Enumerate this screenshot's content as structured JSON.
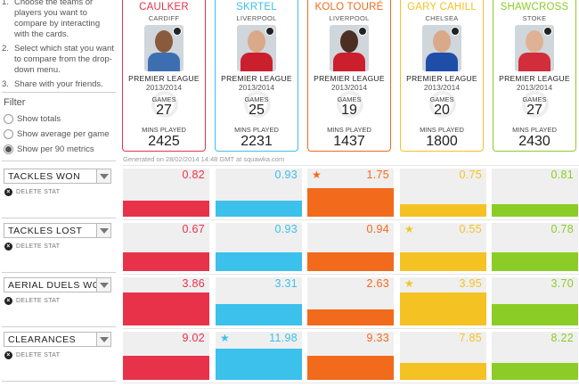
{
  "instructions": [
    {
      "num": "1.",
      "text": "Choose the teams or players you want to compare by interacting with the cards."
    },
    {
      "num": "2.",
      "text": "Select which stat you want to compare from the drop-down menu."
    },
    {
      "num": "3.",
      "text": "Share with your friends."
    }
  ],
  "filter": {
    "title": "Filter",
    "options": [
      {
        "label": "Show totals",
        "selected": false
      },
      {
        "label": "Show average per game",
        "selected": false
      },
      {
        "label": "Show per 90 metrics",
        "selected": true
      }
    ]
  },
  "players": [
    {
      "name": "CAULKER",
      "club": "CARDIFF",
      "league": "PREMIER LEAGUE",
      "season": "2013/2014",
      "games_label": "GAMES",
      "games": "27",
      "mins_label": "MINS PLAYED",
      "mins": "2425",
      "color": "#e8324a",
      "skin": "#8a5a3c",
      "shirt": "#3d6fb0"
    },
    {
      "name": "SKRTEL",
      "club": "LIVERPOOL",
      "league": "PREMIER LEAGUE",
      "season": "2013/2014",
      "games_label": "GAMES",
      "games": "25",
      "mins_label": "MINS PLAYED",
      "mins": "2231",
      "color": "#3cc0ec",
      "skin": "#d9a98a",
      "shirt": "#cc1f2d"
    },
    {
      "name": "KOLO TOURÉ",
      "club": "LIVERPOOL",
      "league": "PREMIER LEAGUE",
      "season": "2013/2014",
      "games_label": "GAMES",
      "games": "19",
      "mins_label": "MINS PLAYED",
      "mins": "1437",
      "color": "#f26a1c",
      "skin": "#4a2f22",
      "shirt": "#cc1f2d"
    },
    {
      "name": "GARY CAHILL",
      "club": "CHELSEA",
      "league": "PREMIER LEAGUE",
      "season": "2013/2014",
      "games_label": "GAMES",
      "games": "20",
      "mins_label": "MINS PLAYED",
      "mins": "1800",
      "color": "#f5c223",
      "skin": "#d9a98a",
      "shirt": "#1f4ea8"
    },
    {
      "name": "SHAWCROSS",
      "club": "STOKE",
      "league": "PREMIER LEAGUE",
      "season": "2013/2014",
      "games_label": "GAMES",
      "games": "27",
      "mins_label": "MINS PLAYED",
      "mins": "2430",
      "color": "#8ccc27",
      "skin": "#e0b294",
      "shirt": "#d22d3a"
    }
  ],
  "generated": "Generated on 28/02/2014 14:48 GMT at squawka.com",
  "delete_label": "DELETE STAT",
  "stats": [
    {
      "name": "TACKLES WON",
      "values": [
        "0.82",
        "0.93",
        "1.75",
        "0.75",
        "0.81"
      ],
      "fill": [
        0.33,
        0.33,
        0.6,
        0.25,
        0.25
      ],
      "star": [
        false,
        false,
        true,
        false,
        false
      ]
    },
    {
      "name": "TACKLES LOST",
      "values": [
        "0.67",
        "0.93",
        "0.94",
        "0.55",
        "0.78"
      ],
      "fill": [
        0.38,
        0.38,
        0.38,
        0.38,
        0.38
      ],
      "star": [
        false,
        false,
        false,
        true,
        false
      ]
    },
    {
      "name": "AERIAL DUELS WON",
      "values": [
        "3.86",
        "3.31",
        "2.63",
        "3.95",
        "3.70"
      ],
      "fill": [
        0.68,
        0.45,
        0.33,
        0.68,
        0.45
      ],
      "star": [
        false,
        false,
        false,
        true,
        false
      ]
    },
    {
      "name": "CLEARANCES",
      "values": [
        "9.02",
        "11.98",
        "9.33",
        "7.85",
        "8.22"
      ],
      "fill": [
        0.5,
        0.65,
        0.5,
        0.35,
        0.35
      ],
      "star": [
        false,
        true,
        false,
        false,
        false
      ]
    }
  ]
}
